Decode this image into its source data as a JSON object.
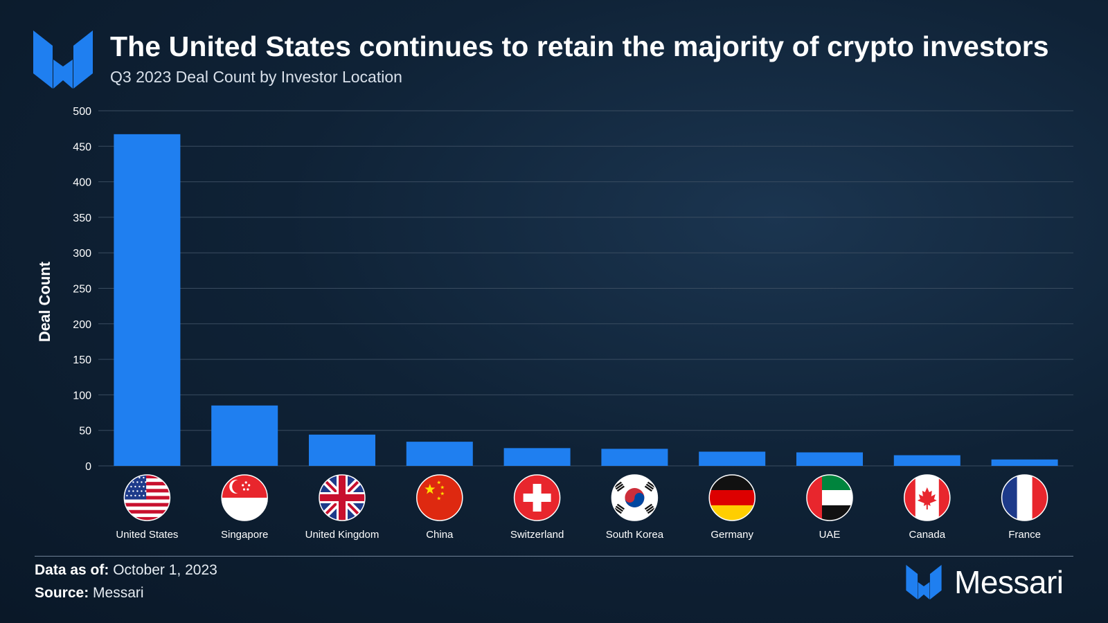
{
  "header": {
    "title": "The United States continues to retain the majority of crypto investors",
    "subtitle": "Q3 2023 Deal Count by Investor Location"
  },
  "footer": {
    "data_as_of_label": "Data as of:",
    "data_as_of_value": "October 1, 2023",
    "source_label": "Source:",
    "source_value": "Messari",
    "brand_name": "Messari"
  },
  "colors": {
    "bar": "#1f7ff0",
    "grid": "#3a4c60",
    "axis_text": "#ffffff"
  },
  "chart_data": {
    "type": "bar",
    "title": "The United States continues to retain the majority of crypto investors",
    "subtitle": "Q3 2023 Deal Count by Investor Location",
    "xlabel": "",
    "ylabel": "Deal Count",
    "ylim": [
      0,
      500
    ],
    "yticks": [
      0,
      50,
      100,
      150,
      200,
      250,
      300,
      350,
      400,
      450,
      500
    ],
    "grid": true,
    "categories": [
      "United States",
      "Singapore",
      "United Kingdom",
      "China",
      "Switzerland",
      "South Korea",
      "Germany",
      "UAE",
      "Canada",
      "France"
    ],
    "flag_icons": [
      "us-flag-icon",
      "singapore-flag-icon",
      "uk-flag-icon",
      "china-flag-icon",
      "switzerland-flag-icon",
      "south-korea-flag-icon",
      "germany-flag-icon",
      "uae-flag-icon",
      "canada-flag-icon",
      "france-flag-icon"
    ],
    "values": [
      467,
      85,
      44,
      34,
      25,
      24,
      20,
      19,
      15,
      9
    ]
  }
}
